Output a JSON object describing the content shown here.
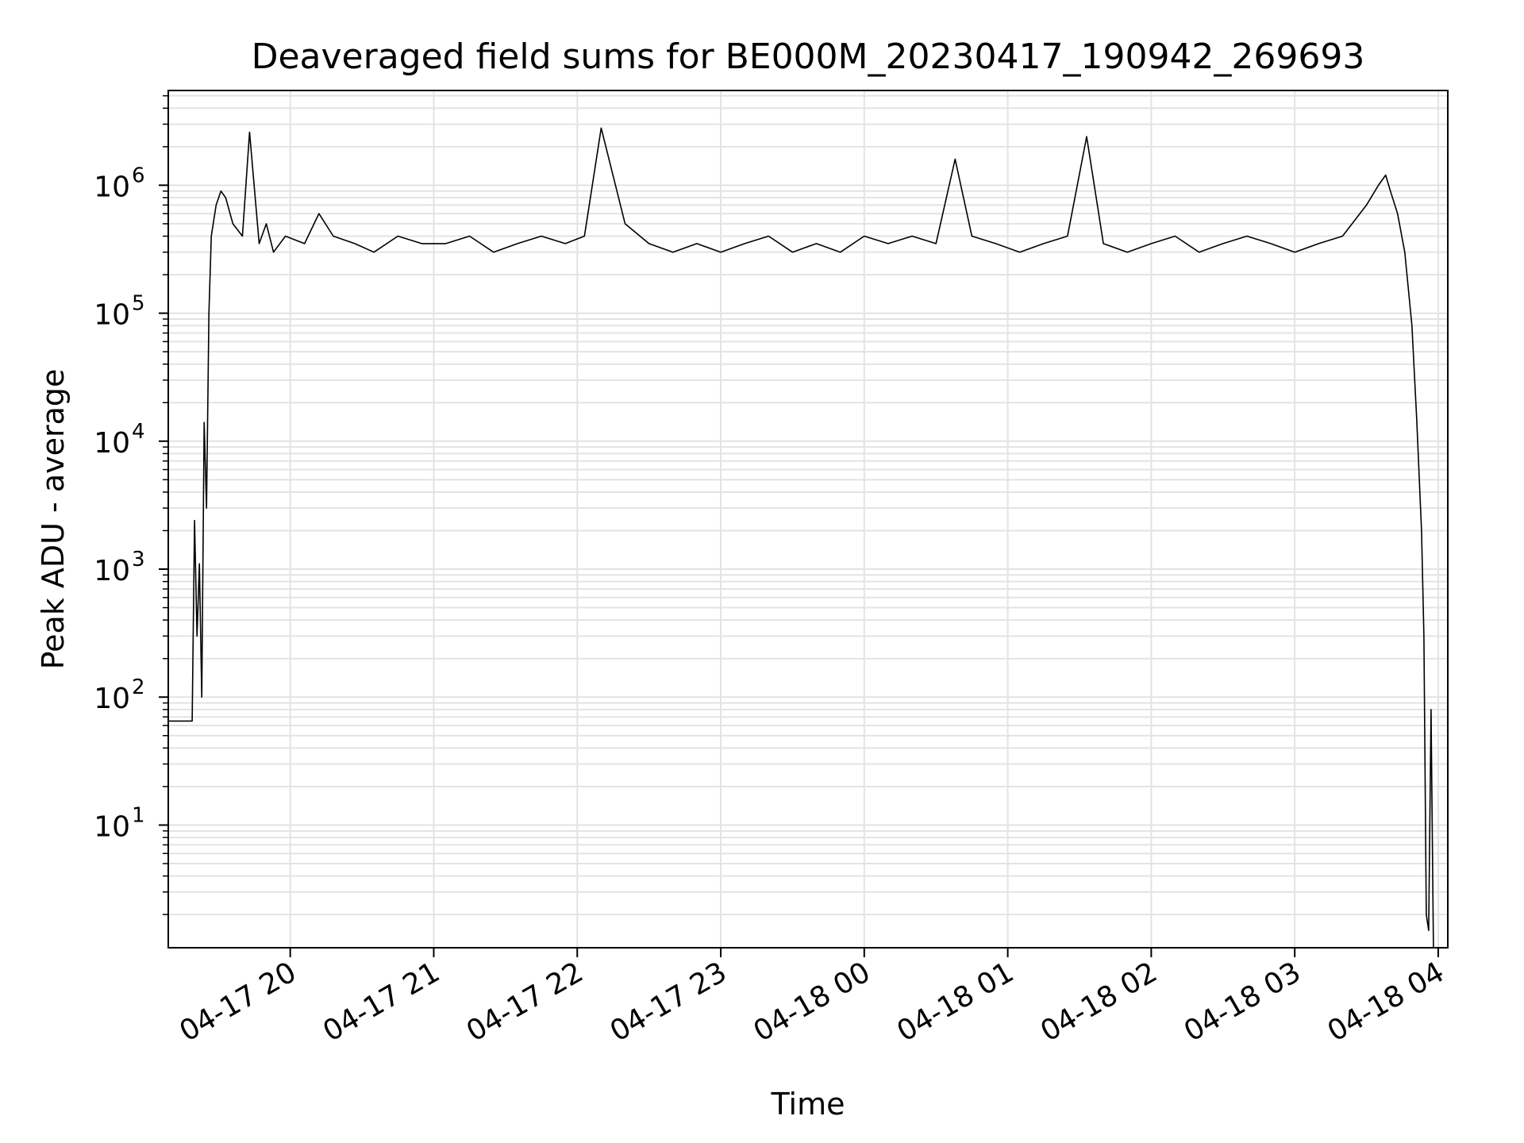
{
  "chart_data": {
    "type": "line",
    "title": "Deaveraged field sums for BE000M_20230417_190942_269693",
    "xlabel": "Time",
    "ylabel": "Peak ADU - average",
    "yscale": "log",
    "grid": true,
    "line_color": "#000000",
    "grid_color": "#e3e3e3",
    "xlim": [
      "2023-04-17 19:09",
      "2023-04-18 04:04"
    ],
    "ylim": [
      1.1,
      5500000
    ],
    "x_ticks": [
      {
        "value": "2023-04-17 20:00",
        "label": "04-17 20"
      },
      {
        "value": "2023-04-17 21:00",
        "label": "04-17 21"
      },
      {
        "value": "2023-04-17 22:00",
        "label": "04-17 22"
      },
      {
        "value": "2023-04-17 23:00",
        "label": "04-17 23"
      },
      {
        "value": "2023-04-18 00:00",
        "label": "04-18 00"
      },
      {
        "value": "2023-04-18 01:00",
        "label": "04-18 01"
      },
      {
        "value": "2023-04-18 02:00",
        "label": "04-18 02"
      },
      {
        "value": "2023-04-18 03:00",
        "label": "04-18 03"
      },
      {
        "value": "2023-04-18 04:00",
        "label": "04-18 04"
      }
    ],
    "y_ticks": [
      {
        "value": 10,
        "base": "10",
        "exp": "1"
      },
      {
        "value": 100,
        "base": "10",
        "exp": "2"
      },
      {
        "value": 1000,
        "base": "10",
        "exp": "3"
      },
      {
        "value": 10000,
        "base": "10",
        "exp": "4"
      },
      {
        "value": 100000,
        "base": "10",
        "exp": "5"
      },
      {
        "value": 1000000,
        "base": "10",
        "exp": "6"
      }
    ],
    "series": [
      {
        "x": [
          "2023-04-17 19:09",
          "2023-04-17 19:19",
          "2023-04-17 19:20",
          "2023-04-17 19:21",
          "2023-04-17 19:22",
          "2023-04-17 19:23",
          "2023-04-17 19:24",
          "2023-04-17 19:25",
          "2023-04-17 19:26",
          "2023-04-17 19:27",
          "2023-04-17 19:29",
          "2023-04-17 19:31",
          "2023-04-17 19:33",
          "2023-04-17 19:36",
          "2023-04-17 19:40",
          "2023-04-17 19:43",
          "2023-04-17 19:47",
          "2023-04-17 19:50",
          "2023-04-17 19:53",
          "2023-04-17 19:58",
          "2023-04-17 20:06",
          "2023-04-17 20:12",
          "2023-04-17 20:18",
          "2023-04-17 20:27",
          "2023-04-17 20:35",
          "2023-04-17 20:45",
          "2023-04-17 20:55",
          "2023-04-17 21:05",
          "2023-04-17 21:15",
          "2023-04-17 21:25",
          "2023-04-17 21:35",
          "2023-04-17 21:45",
          "2023-04-17 21:55",
          "2023-04-17 22:03",
          "2023-04-17 22:10",
          "2023-04-17 22:20",
          "2023-04-17 22:30",
          "2023-04-17 22:40",
          "2023-04-17 22:50",
          "2023-04-17 23:00",
          "2023-04-17 23:10",
          "2023-04-17 23:20",
          "2023-04-17 23:30",
          "2023-04-17 23:40",
          "2023-04-17 23:50",
          "2023-04-18 00:00",
          "2023-04-18 00:10",
          "2023-04-18 00:20",
          "2023-04-18 00:30",
          "2023-04-18 00:38",
          "2023-04-18 00:45",
          "2023-04-18 00:55",
          "2023-04-18 01:05",
          "2023-04-18 01:15",
          "2023-04-18 01:25",
          "2023-04-18 01:33",
          "2023-04-18 01:40",
          "2023-04-18 01:50",
          "2023-04-18 02:00",
          "2023-04-18 02:10",
          "2023-04-18 02:20",
          "2023-04-18 02:30",
          "2023-04-18 02:40",
          "2023-04-18 02:50",
          "2023-04-18 03:00",
          "2023-04-18 03:10",
          "2023-04-18 03:20",
          "2023-04-18 03:30",
          "2023-04-18 03:35",
          "2023-04-18 03:38",
          "2023-04-18 03:40",
          "2023-04-18 03:43",
          "2023-04-18 03:46",
          "2023-04-18 03:49",
          "2023-04-18 03:51",
          "2023-04-18 03:53",
          "2023-04-18 03:54",
          "2023-04-18 03:55",
          "2023-04-18 03:56",
          "2023-04-18 03:57",
          "2023-04-18 03:58",
          "2023-04-18 03:59"
        ],
        "y": [
          65,
          65,
          2400,
          300,
          1100,
          100,
          14000,
          3000,
          100000,
          400000,
          700000,
          900000,
          800000,
          500000,
          400000,
          2600000,
          350000,
          500000,
          300000,
          400000,
          350000,
          600000,
          400000,
          350000,
          300000,
          400000,
          350000,
          350000,
          400000,
          300000,
          350000,
          400000,
          350000,
          400000,
          2800000,
          500000,
          350000,
          300000,
          350000,
          300000,
          350000,
          400000,
          300000,
          350000,
          300000,
          400000,
          350000,
          400000,
          350000,
          1600000,
          400000,
          350000,
          300000,
          350000,
          400000,
          2400000,
          350000,
          300000,
          350000,
          400000,
          300000,
          350000,
          400000,
          350000,
          300000,
          350000,
          400000,
          700000,
          1000000,
          1200000,
          900000,
          600000,
          300000,
          80000,
          15000,
          2000,
          300,
          2,
          1.5,
          80,
          1.1,
          1.1
        ]
      }
    ]
  }
}
